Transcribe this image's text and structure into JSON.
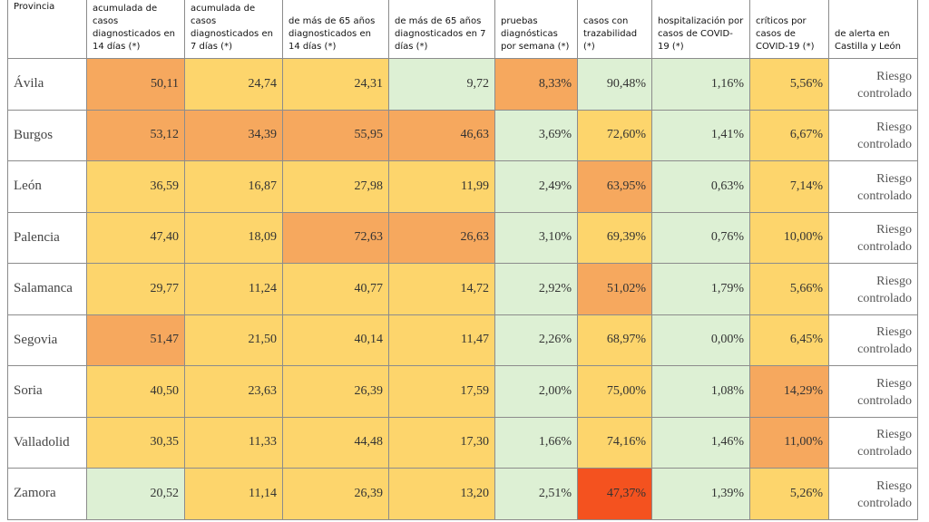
{
  "table": {
    "header": [
      "Provincia",
      "acumulada de casos diagnosticados en 14 días (*)",
      "acumulada de casos diagnosticados en 7 días (*)",
      "de más de 65 años diagnosticados en 14 días (*)",
      "de más de 65 años diagnosticados en 7 días (*)",
      "pruebas diagnósticas por semana (*)",
      "casos con trazabilidad (*)",
      "hospitalización por casos de COVID-19 (*)",
      "críticos por casos de COVID-19 (*)",
      "de alerta en Castilla y León"
    ],
    "rows": [
      {
        "cells": [
          "Ávila",
          "50,11",
          "24,74",
          "24,31",
          "9,72",
          "8,33%",
          "90,48%",
          "1,16%",
          "5,56%",
          "Riesgo controlado"
        ],
        "colors": [
          "#ffffff",
          "#f6a85e",
          "#fdd56c",
          "#fdd56c",
          "#ddf0d4",
          "#f6a85e",
          "#ddf0d4",
          "#ddf0d4",
          "#fdd56c",
          "#ffffff"
        ]
      },
      {
        "cells": [
          "Burgos",
          "53,12",
          "34,39",
          "55,95",
          "46,63",
          "3,69%",
          "72,60%",
          "1,41%",
          "6,67%",
          "Riesgo controlado"
        ],
        "colors": [
          "#ffffff",
          "#f6a85e",
          "#f6a85e",
          "#f6a85e",
          "#f6a85e",
          "#ddf0d4",
          "#fdd56c",
          "#ddf0d4",
          "#fdd56c",
          "#ffffff"
        ]
      },
      {
        "cells": [
          "León",
          "36,59",
          "16,87",
          "27,98",
          "11,99",
          "2,49%",
          "63,95%",
          "0,63%",
          "7,14%",
          "Riesgo controlado"
        ],
        "colors": [
          "#ffffff",
          "#fdd56c",
          "#fdd56c",
          "#fdd56c",
          "#fdd56c",
          "#ddf0d4",
          "#f6a85e",
          "#ddf0d4",
          "#fdd56c",
          "#ffffff"
        ]
      },
      {
        "cells": [
          "Palencia",
          "47,40",
          "18,09",
          "72,63",
          "26,63",
          "3,10%",
          "69,39%",
          "0,76%",
          "10,00%",
          "Riesgo controlado"
        ],
        "colors": [
          "#ffffff",
          "#fdd56c",
          "#fdd56c",
          "#f6a85e",
          "#f6a85e",
          "#ddf0d4",
          "#fdd56c",
          "#ddf0d4",
          "#fdd56c",
          "#ffffff"
        ]
      },
      {
        "cells": [
          "Salamanca",
          "29,77",
          "11,24",
          "40,77",
          "14,72",
          "2,92%",
          "51,02%",
          "1,79%",
          "5,66%",
          "Riesgo controlado"
        ],
        "colors": [
          "#ffffff",
          "#fdd56c",
          "#fdd56c",
          "#fdd56c",
          "#fdd56c",
          "#ddf0d4",
          "#f6a85e",
          "#ddf0d4",
          "#fdd56c",
          "#ffffff"
        ]
      },
      {
        "cells": [
          "Segovia",
          "51,47",
          "21,50",
          "40,14",
          "11,47",
          "2,26%",
          "68,97%",
          "0,00%",
          "6,45%",
          "Riesgo controlado"
        ],
        "colors": [
          "#ffffff",
          "#f6a85e",
          "#fdd56c",
          "#fdd56c",
          "#fdd56c",
          "#ddf0d4",
          "#fdd56c",
          "#ddf0d4",
          "#fdd56c",
          "#ffffff"
        ]
      },
      {
        "cells": [
          "Soria",
          "40,50",
          "23,63",
          "26,39",
          "17,59",
          "2,00%",
          "75,00%",
          "1,08%",
          "14,29%",
          "Riesgo controlado"
        ],
        "colors": [
          "#ffffff",
          "#fdd56c",
          "#fdd56c",
          "#fdd56c",
          "#fdd56c",
          "#ddf0d4",
          "#fdd56c",
          "#ddf0d4",
          "#f6a85e",
          "#ffffff"
        ]
      },
      {
        "cells": [
          "Valladolid",
          "30,35",
          "11,33",
          "44,48",
          "17,30",
          "1,66%",
          "74,16%",
          "1,46%",
          "11,00%",
          "Riesgo controlado"
        ],
        "colors": [
          "#ffffff",
          "#fdd56c",
          "#fdd56c",
          "#fdd56c",
          "#fdd56c",
          "#ddf0d4",
          "#fdd56c",
          "#ddf0d4",
          "#f6a85e",
          "#ffffff"
        ]
      },
      {
        "cells": [
          "Zamora",
          "20,52",
          "11,14",
          "26,39",
          "13,20",
          "2,51%",
          "47,37%",
          "1,39%",
          "5,26%",
          "Riesgo controlado"
        ],
        "colors": [
          "#ffffff",
          "#ddf0d4",
          "#fdd56c",
          "#fdd56c",
          "#fdd56c",
          "#ddf0d4",
          "#f4521f",
          "#ddf0d4",
          "#fdd56c",
          "#ffffff"
        ]
      }
    ]
  }
}
